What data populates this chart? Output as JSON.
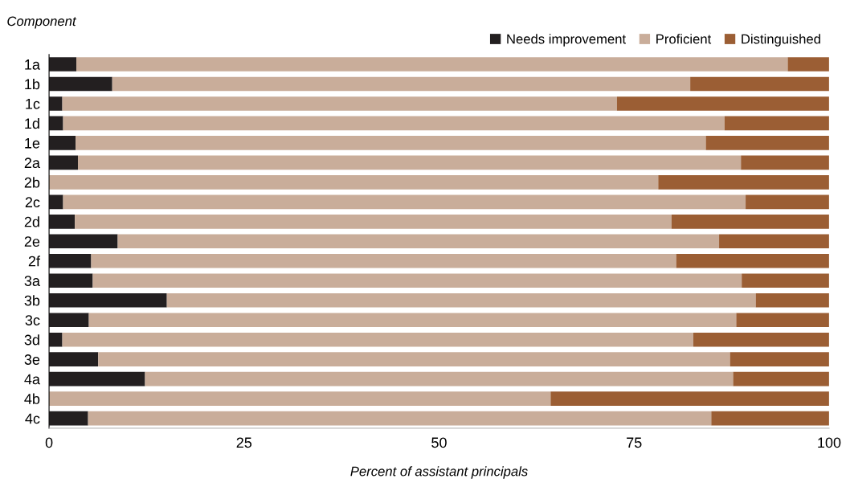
{
  "chart_data": {
    "type": "bar",
    "orientation": "horizontal",
    "stacked": true,
    "ylabel": "Component",
    "xlabel": "Percent of assistant principals",
    "categories": [
      "1a",
      "1b",
      "1c",
      "1d",
      "1e",
      "2a",
      "2b",
      "2c",
      "2d",
      "2e",
      "2f",
      "3a",
      "3b",
      "3c",
      "3d",
      "3e",
      "4a",
      "4b",
      "4c"
    ],
    "series": [
      {
        "name": "Needs improvement",
        "color": "#231f20",
        "values": [
          3.5,
          8.1,
          1.7,
          1.8,
          3.4,
          3.7,
          0,
          1.8,
          3.3,
          8.8,
          5.4,
          5.6,
          15.1,
          5.1,
          1.7,
          6.3,
          12.3,
          0,
          5.0
        ]
      },
      {
        "name": "Proficient",
        "color": "#c9ad9a",
        "values": [
          91.2,
          74.1,
          71.1,
          84.8,
          80.8,
          85.0,
          78.1,
          87.5,
          76.5,
          77.1,
          75.0,
          83.2,
          75.5,
          83.0,
          80.9,
          81.0,
          75.4,
          64.3,
          79.9
        ]
      },
      {
        "name": "Distinguished",
        "color": "#9b5e34",
        "values": [
          5.3,
          17.8,
          27.2,
          13.4,
          15.8,
          11.3,
          21.9,
          10.7,
          20.2,
          14.1,
          19.6,
          11.2,
          9.4,
          11.9,
          17.4,
          12.7,
          12.3,
          35.7,
          15.1
        ]
      }
    ],
    "xlim": [
      0,
      100
    ],
    "xticks": [
      0,
      25,
      50,
      75,
      100
    ],
    "grid": false,
    "legend": "top right"
  }
}
